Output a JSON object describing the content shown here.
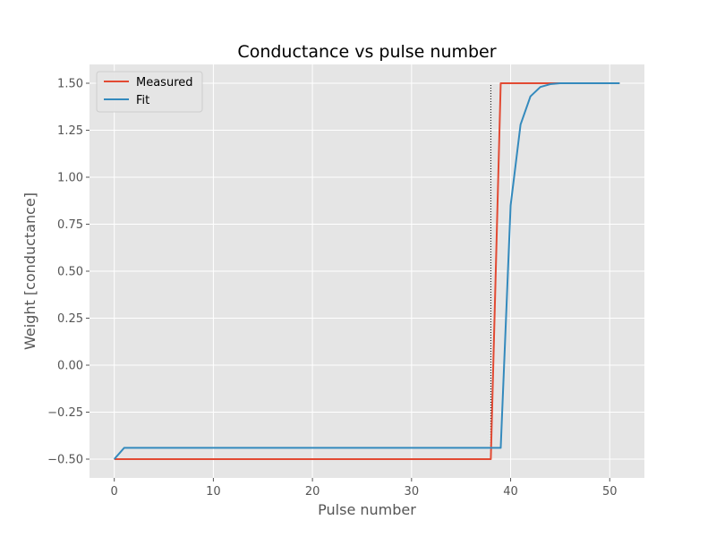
{
  "chart_data": {
    "type": "line",
    "title": "Conductance vs pulse number",
    "xlabel": "Pulse number",
    "ylabel": "Weight [conductance]",
    "xlim": [
      -2.5,
      53.5
    ],
    "ylim": [
      -0.6,
      1.6
    ],
    "xticks": [
      0,
      10,
      20,
      30,
      40,
      50
    ],
    "yticks": [
      -0.5,
      -0.25,
      0.0,
      0.25,
      0.5,
      0.75,
      1.0,
      1.25,
      1.5
    ],
    "xtick_labels": [
      "0",
      "10",
      "20",
      "30",
      "40",
      "50"
    ],
    "ytick_labels": [
      "−0.50",
      "−0.25",
      "0.00",
      "0.25",
      "0.50",
      "0.75",
      "1.00",
      "1.25",
      "1.50"
    ],
    "grid": true,
    "legend_position": "top-left",
    "series": [
      {
        "name": "Measured",
        "color": "#E24A33",
        "x": [
          0,
          38,
          39,
          51
        ],
        "y": [
          -0.5,
          -0.5,
          1.5,
          1.5
        ]
      },
      {
        "name": "Fit",
        "color": "#348ABD",
        "x": [
          0,
          1,
          38,
          39,
          40,
          41,
          42,
          43,
          44,
          45,
          46,
          48,
          51
        ],
        "y": [
          -0.5,
          -0.44,
          -0.44,
          -0.44,
          0.85,
          1.28,
          1.43,
          1.48,
          1.495,
          1.5,
          1.5,
          1.5,
          1.5
        ]
      }
    ],
    "annotations": [
      {
        "type": "vertical-dotted-line",
        "x": 38,
        "y_range": [
          -0.5,
          1.5
        ],
        "color": "#000000"
      }
    ]
  }
}
